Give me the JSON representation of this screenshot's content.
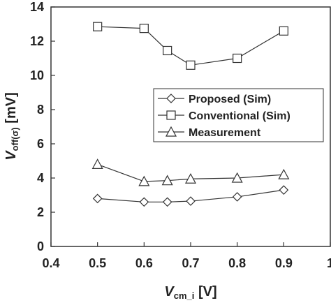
{
  "chart_data": {
    "type": "line",
    "xlabel": {
      "main": "V",
      "sub": "cm_i",
      "unit": "[V]"
    },
    "ylabel": {
      "main": "V",
      "sub": "off(σ)",
      "unit": "[mV]"
    },
    "xlim": [
      0.4,
      1.0
    ],
    "ylim": [
      0,
      14
    ],
    "xticks": [
      0.4,
      0.5,
      0.6,
      0.7,
      0.8,
      0.9,
      1.0
    ],
    "xtick_labels": [
      "0.4",
      "0.5",
      "0.6",
      "0.7",
      "0.8",
      "0.9",
      "1"
    ],
    "yticks": [
      0,
      2,
      4,
      6,
      8,
      10,
      12,
      14
    ],
    "ytick_labels": [
      "0",
      "2",
      "4",
      "6",
      "8",
      "10",
      "12",
      "14"
    ],
    "grid": false,
    "legend_position": "right-middle",
    "series": [
      {
        "name": "Proposed (Sim)",
        "marker": "diamond",
        "x": [
          0.5,
          0.6,
          0.65,
          0.7,
          0.8,
          0.9
        ],
        "y": [
          2.8,
          2.6,
          2.6,
          2.65,
          2.9,
          3.3
        ]
      },
      {
        "name": "Conventional (Sim)",
        "marker": "square",
        "x": [
          0.5,
          0.6,
          0.65,
          0.7,
          0.8,
          0.9
        ],
        "y": [
          12.85,
          12.75,
          11.45,
          10.6,
          11.0,
          12.6
        ]
      },
      {
        "name": "Measurement",
        "marker": "triangle",
        "x": [
          0.5,
          0.6,
          0.65,
          0.7,
          0.8,
          0.9
        ],
        "y": [
          4.8,
          3.8,
          3.85,
          3.95,
          4.0,
          4.2
        ]
      }
    ]
  }
}
